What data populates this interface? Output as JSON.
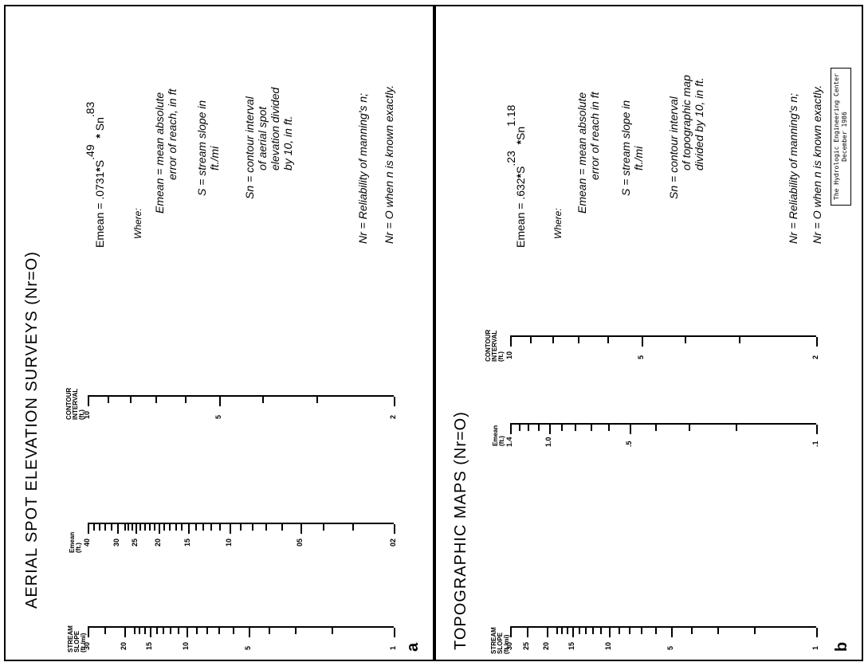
{
  "panel_a": {
    "title": "AERIAL SPOT ELEVATION SURVEYS (Nr=O)",
    "letter": "a",
    "headers": {
      "slope": [
        "STREAM",
        "SLOPE",
        "(ft./mi)"
      ],
      "emean": [
        "Emean",
        "(ft.)"
      ],
      "contour": [
        "CONTOUR",
        "INTERVAL",
        "(ft.)"
      ]
    },
    "slope_labels": [
      "30",
      "20",
      "15",
      "10",
      "5",
      "1"
    ],
    "emean_labels": [
      "40",
      "30",
      "25",
      "20",
      "15",
      "10",
      "05",
      "02"
    ],
    "contour_labels": [
      "10",
      "5",
      "2"
    ],
    "equation": {
      "lhs": "Emean = .0731",
      "mid": "S",
      "exp1": ".49",
      "op": "Sn",
      "exp2": ".83"
    },
    "where": "Where:",
    "def_emean": [
      "Emean = mean absolute",
      "error of reach, in ft"
    ],
    "def_s": [
      "S = stream slope in",
      "ft./mi"
    ],
    "def_sn": [
      "Sn = contour interval",
      "of aerial spot",
      "elevation divided",
      "by 10, in ft."
    ],
    "nr1": "Nr = Reliability of manning's n;",
    "nr2": "Nr = O when n is known exactly."
  },
  "panel_b": {
    "title": "TOPOGRAPHIC MAPS (Nr=O)",
    "letter": "b",
    "headers": {
      "slope": [
        "STREAM",
        "SLOPE",
        "(ft./mi)"
      ],
      "emean": [
        "Emean",
        "(ft.)"
      ],
      "contour": [
        "CONTOUR",
        "INTERVAL",
        "(ft.)"
      ]
    },
    "slope_labels": [
      "30",
      "25",
      "20",
      "15",
      "10",
      "5",
      "1"
    ],
    "emean_labels": [
      "1.4",
      "1.0",
      ".5",
      ".1"
    ],
    "contour_labels": [
      "10",
      "5",
      "2"
    ],
    "equation": {
      "lhs": "Emean = .632",
      "mid": "S",
      "exp1": ".23",
      "op": "Sn",
      "exp2": "1.18"
    },
    "where": "Where:",
    "def_emean": [
      "Emean = mean absolute",
      "error of reach in ft"
    ],
    "def_s": [
      "S = stream slope in",
      "ft./mi"
    ],
    "def_sn": [
      "Sn = contour interval",
      "of topographic map",
      "divided by 10, in ft."
    ],
    "nr1": "Nr = Reliability of manning's n;",
    "nr2": "Nr = O when n is known exactly."
  },
  "credit": [
    "The Hydrologic Engineering Center",
    "December 1986"
  ]
}
